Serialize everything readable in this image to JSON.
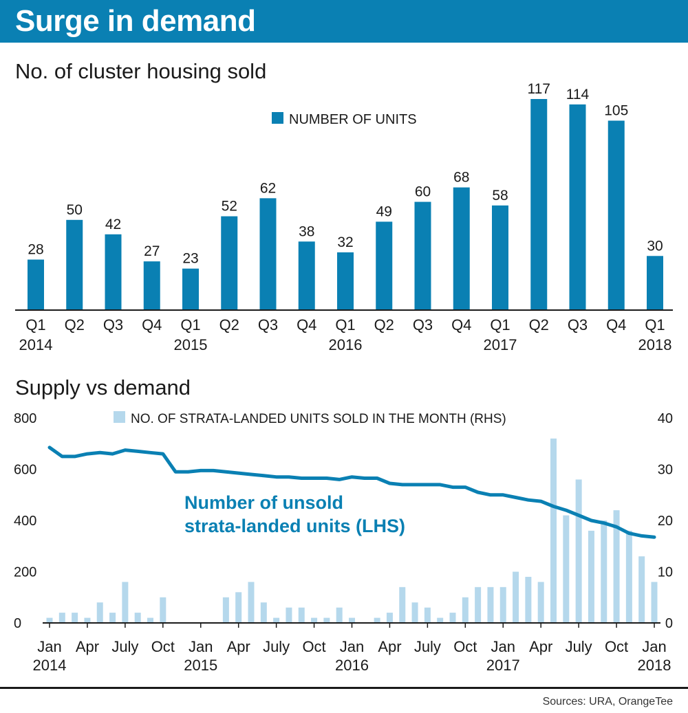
{
  "header": {
    "title": "Surge in demand"
  },
  "chart_data": [
    {
      "type": "bar",
      "title": "No. of cluster housing sold",
      "legend": {
        "label": "NUMBER OF UNITS",
        "placement": "top-center"
      },
      "categories": [
        "Q1 2014",
        "Q2",
        "Q3",
        "Q4",
        "Q1 2015",
        "Q2",
        "Q3",
        "Q4",
        "Q1 2016",
        "Q2",
        "Q3",
        "Q4",
        "Q1 2017",
        "Q2",
        "Q3",
        "Q4",
        "Q1 2018"
      ],
      "quarter_labels": [
        "Q1",
        "Q2",
        "Q3",
        "Q4",
        "Q1",
        "Q2",
        "Q3",
        "Q4",
        "Q1",
        "Q2",
        "Q3",
        "Q4",
        "Q1",
        "Q2",
        "Q3",
        "Q4",
        "Q1"
      ],
      "year_labels": [
        {
          "index": 0,
          "label": "2014"
        },
        {
          "index": 4,
          "label": "2015"
        },
        {
          "index": 8,
          "label": "2016"
        },
        {
          "index": 12,
          "label": "2017"
        },
        {
          "index": 16,
          "label": "2018"
        }
      ],
      "values": [
        28,
        50,
        42,
        27,
        23,
        52,
        62,
        38,
        32,
        49,
        60,
        68,
        58,
        117,
        114,
        105,
        30
      ],
      "ylim": [
        0,
        120
      ],
      "grid": false,
      "bar_color": "#0a80b3"
    },
    {
      "type": "bar+line",
      "title": "Supply vs demand",
      "legend": {
        "label": "NO. OF STRATA-LANDED UNITS SOLD IN THE MONTH (RHS)",
        "placement": "top"
      },
      "annotation_lines": [
        "Number of unsold",
        "strata-landed units (LHS)"
      ],
      "x_tick_months": [
        "Jan",
        "Apr",
        "July",
        "Oct",
        "Jan",
        "Apr",
        "July",
        "Oct",
        "Jan",
        "Apr",
        "July",
        "Oct",
        "Jan",
        "Apr",
        "July",
        "Oct",
        "Jan"
      ],
      "x_tick_years": [
        {
          "index": 0,
          "label": "2014"
        },
        {
          "index": 4,
          "label": "2015"
        },
        {
          "index": 8,
          "label": "2016"
        },
        {
          "index": 12,
          "label": "2017"
        },
        {
          "index": 16,
          "label": "2018"
        }
      ],
      "left_axis": {
        "ylim": [
          0,
          800
        ],
        "ticks": [
          "0",
          "200",
          "400",
          "600",
          "800"
        ]
      },
      "right_axis": {
        "ylim": [
          0,
          40
        ],
        "ticks": [
          "0",
          "10",
          "20",
          "30",
          "40"
        ]
      },
      "months": [
        "Jan 2014",
        "Feb 2014",
        "Mar 2014",
        "Apr 2014",
        "May 2014",
        "Jun 2014",
        "Jul 2014",
        "Aug 2014",
        "Sep 2014",
        "Oct 2014",
        "Nov 2014",
        "Dec 2014",
        "Jan 2015",
        "Feb 2015",
        "Mar 2015",
        "Apr 2015",
        "May 2015",
        "Jun 2015",
        "Jul 2015",
        "Aug 2015",
        "Sep 2015",
        "Oct 2015",
        "Nov 2015",
        "Dec 2015",
        "Jan 2016",
        "Feb 2016",
        "Mar 2016",
        "Apr 2016",
        "May 2016",
        "Jun 2016",
        "Jul 2016",
        "Aug 2016",
        "Sep 2016",
        "Oct 2016",
        "Nov 2016",
        "Dec 2016",
        "Jan 2017",
        "Feb 2017",
        "Mar 2017",
        "Apr 2017",
        "May 2017",
        "Jun 2017",
        "Jul 2017",
        "Aug 2017",
        "Sep 2017",
        "Oct 2017",
        "Nov 2017",
        "Dec 2017",
        "Jan 2018"
      ],
      "series": [
        {
          "name": "NO. OF STRATA-LANDED UNITS SOLD IN THE MONTH (RHS)",
          "type": "bar",
          "axis": "right",
          "color": "#b5d8ec",
          "values": [
            1,
            2,
            2,
            1,
            4,
            2,
            8,
            2,
            1,
            5,
            0,
            0,
            0,
            0,
            5,
            6,
            8,
            4,
            1,
            3,
            3,
            1,
            1,
            3,
            1,
            0,
            1,
            2,
            7,
            4,
            3,
            1,
            2,
            5,
            7,
            7,
            7,
            10,
            9,
            8,
            36,
            21,
            28,
            18,
            20,
            22,
            18,
            13,
            8
          ]
        },
        {
          "name": "Number of unsold strata-landed units (LHS)",
          "type": "line",
          "axis": "left",
          "color": "#0a80b3",
          "values": [
            685,
            650,
            650,
            660,
            665,
            660,
            675,
            670,
            665,
            660,
            590,
            590,
            595,
            595,
            590,
            585,
            580,
            575,
            570,
            570,
            565,
            565,
            565,
            560,
            570,
            565,
            565,
            545,
            540,
            540,
            540,
            540,
            530,
            530,
            510,
            500,
            500,
            490,
            480,
            475,
            455,
            440,
            420,
            400,
            390,
            375,
            350,
            340,
            335
          ]
        }
      ]
    }
  ],
  "sources": "Sources: URA, OrangeTee"
}
